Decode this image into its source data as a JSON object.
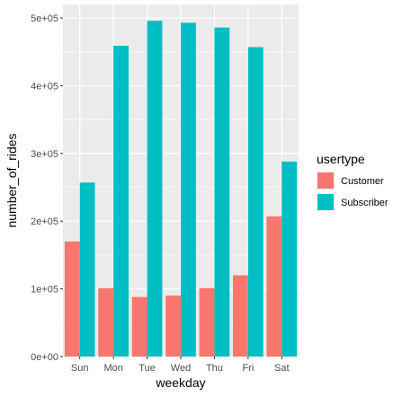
{
  "chart_data": {
    "type": "bar",
    "categories": [
      "Sun",
      "Mon",
      "Tue",
      "Wed",
      "Thu",
      "Fri",
      "Sat"
    ],
    "series": [
      {
        "name": "Customer",
        "color": "#F8766D",
        "values": [
          170000,
          101000,
          88000,
          90000,
          101000,
          120000,
          207000
        ]
      },
      {
        "name": "Subscriber",
        "color": "#00BFC4",
        "values": [
          257000,
          459000,
          496000,
          493000,
          486000,
          457000,
          288000
        ]
      }
    ],
    "xlabel": "weekday",
    "ylabel": "number_of_rides",
    "ylim": [
      0,
      520000
    ],
    "yticks": [
      0,
      100000,
      200000,
      300000,
      400000,
      500000
    ],
    "ytick_labels": [
      "0e+00",
      "1e+05",
      "2e+05",
      "3e+05",
      "4e+05",
      "5e+05"
    ],
    "grid": true,
    "legend": {
      "title": "usertype",
      "placement": "right"
    },
    "panel_background": "#EBEBEB",
    "grid_color": "#FFFFFF"
  }
}
